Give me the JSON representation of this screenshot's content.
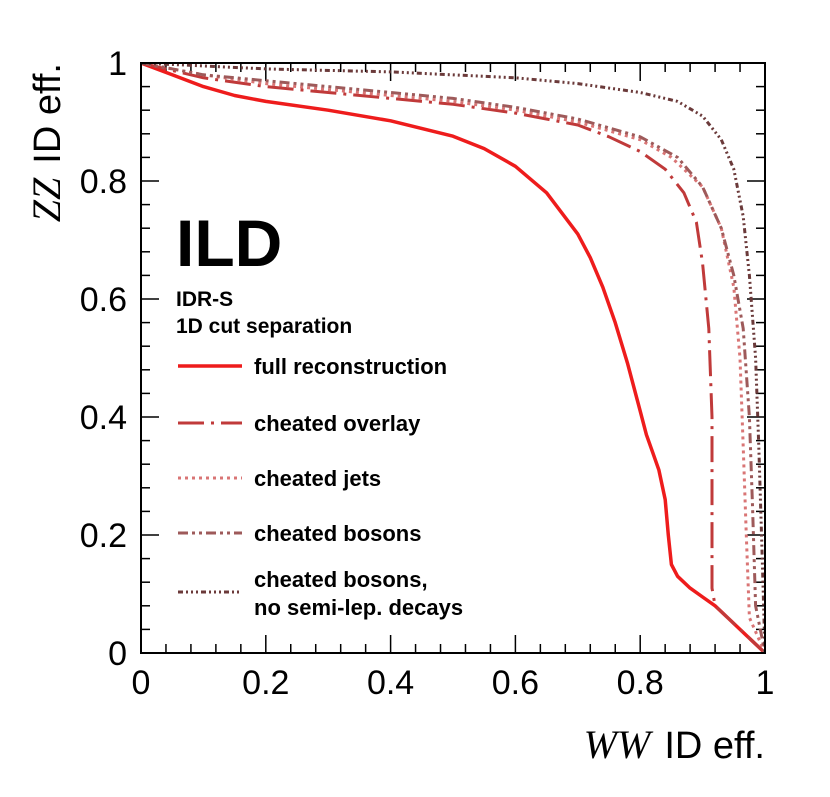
{
  "chart_data": {
    "type": "line",
    "title": "",
    "experiment_label": "ILD",
    "sub_labels": [
      "IDR-S",
      "1D cut separation"
    ],
    "xlabel": {
      "var": "WW",
      "text": "ID eff."
    },
    "ylabel": {
      "var": "ZZ",
      "text": "ID eff."
    },
    "xlim": [
      0,
      1
    ],
    "ylim": [
      0,
      1
    ],
    "x_ticks": [
      "0",
      "0.2",
      "0.4",
      "0.6",
      "0.8",
      "1"
    ],
    "y_ticks": [
      "0",
      "0.2",
      "0.4",
      "0.6",
      "0.8",
      "1"
    ],
    "legend_position": "center-left",
    "series": [
      {
        "name": "full reconstruction",
        "label": "full reconstruction",
        "color": "#ee1c1c",
        "style": "solid",
        "x": [
          0,
          0.05,
          0.1,
          0.15,
          0.2,
          0.3,
          0.4,
          0.5,
          0.55,
          0.6,
          0.65,
          0.7,
          0.72,
          0.74,
          0.76,
          0.78,
          0.8,
          0.81,
          0.82,
          0.83,
          0.84,
          0.845,
          0.85,
          0.86,
          0.88,
          0.9,
          0.92,
          0.94,
          0.96,
          0.98,
          1.0
        ],
        "y": [
          1.0,
          0.98,
          0.96,
          0.945,
          0.935,
          0.92,
          0.902,
          0.876,
          0.855,
          0.825,
          0.78,
          0.71,
          0.67,
          0.62,
          0.56,
          0.49,
          0.41,
          0.37,
          0.34,
          0.31,
          0.26,
          0.2,
          0.15,
          0.13,
          0.11,
          0.095,
          0.08,
          0.06,
          0.04,
          0.02,
          0.0
        ]
      },
      {
        "name": "cheated overlay",
        "label": "cheated overlay",
        "color": "#c03a3a",
        "style": "dashdot",
        "x": [
          0,
          0.1,
          0.2,
          0.3,
          0.4,
          0.5,
          0.6,
          0.7,
          0.75,
          0.8,
          0.84,
          0.87,
          0.89,
          0.9,
          0.91,
          0.915,
          0.915,
          0.92,
          0.95,
          1.0
        ],
        "y": [
          1.0,
          0.975,
          0.96,
          0.95,
          0.94,
          0.93,
          0.915,
          0.895,
          0.875,
          0.85,
          0.82,
          0.78,
          0.73,
          0.66,
          0.55,
          0.4,
          0.11,
          0.08,
          0.05,
          0.0
        ]
      },
      {
        "name": "cheated jets",
        "label": "cheated jets",
        "color": "#d97575",
        "style": "dotted",
        "x": [
          0,
          0.1,
          0.2,
          0.3,
          0.4,
          0.5,
          0.6,
          0.7,
          0.8,
          0.85,
          0.9,
          0.93,
          0.95,
          0.96,
          0.965,
          0.97,
          0.975,
          1.0
        ],
        "y": [
          1.0,
          0.98,
          0.965,
          0.955,
          0.945,
          0.935,
          0.92,
          0.9,
          0.87,
          0.84,
          0.79,
          0.72,
          0.62,
          0.5,
          0.35,
          0.2,
          0.06,
          0.0
        ]
      },
      {
        "name": "cheated bosons",
        "label": "cheated bosons",
        "color": "#9e5a5a",
        "style": "dashdotdot",
        "x": [
          0,
          0.1,
          0.2,
          0.3,
          0.4,
          0.5,
          0.6,
          0.7,
          0.8,
          0.86,
          0.9,
          0.93,
          0.95,
          0.965,
          0.975,
          0.98,
          0.985,
          1.0
        ],
        "y": [
          1.0,
          0.98,
          0.97,
          0.96,
          0.95,
          0.94,
          0.925,
          0.905,
          0.875,
          0.84,
          0.79,
          0.72,
          0.64,
          0.55,
          0.4,
          0.25,
          0.08,
          0.0
        ]
      },
      {
        "name": "cheated bosons, no semi-lep. decays",
        "label": [
          "cheated bosons,",
          "no semi-lep. decays"
        ],
        "color": "#6b3a3a",
        "style": "dashdotdotdot",
        "x": [
          0,
          0.2,
          0.4,
          0.6,
          0.7,
          0.8,
          0.86,
          0.9,
          0.93,
          0.95,
          0.965,
          0.975,
          0.985,
          0.99,
          0.995,
          1.0
        ],
        "y": [
          1.0,
          0.99,
          0.985,
          0.975,
          0.965,
          0.95,
          0.935,
          0.91,
          0.87,
          0.82,
          0.74,
          0.64,
          0.5,
          0.35,
          0.18,
          0.0
        ]
      }
    ]
  }
}
